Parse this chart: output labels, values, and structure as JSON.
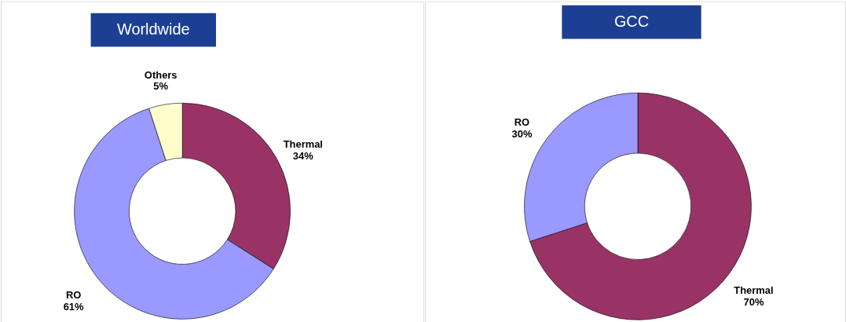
{
  "chart_data": [
    {
      "type": "donut",
      "title": "Worldwide",
      "categories": [
        "Thermal",
        "RO",
        "Others"
      ],
      "values": [
        34,
        61,
        5
      ],
      "value_labels": [
        "34%",
        "61%",
        "5%"
      ],
      "colors": [
        "#993366",
        "#9999ff",
        "#ffffcc"
      ]
    },
    {
      "type": "donut",
      "title": "GCC",
      "categories": [
        "Thermal",
        "RO"
      ],
      "values": [
        70,
        30
      ],
      "value_labels": [
        "70%",
        "30%"
      ],
      "colors": [
        "#993366",
        "#9999ff"
      ]
    }
  ]
}
